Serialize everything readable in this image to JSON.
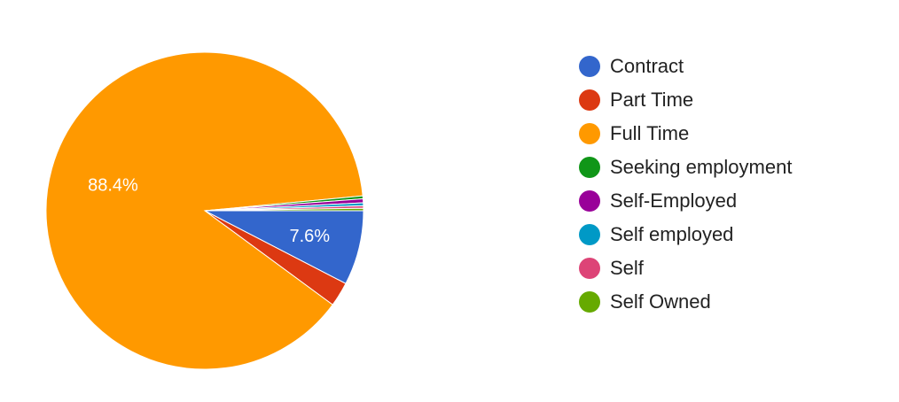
{
  "chart_data": {
    "type": "pie",
    "title": "",
    "legend_position": "right",
    "slices": [
      {
        "label": "Contract",
        "value": 7.6,
        "color": "#3366cc",
        "display_label": "7.6%"
      },
      {
        "label": "Part Time",
        "value": 2.5,
        "color": "#dc3912",
        "display_label": ""
      },
      {
        "label": "Full Time",
        "value": 88.4,
        "color": "#ff9900",
        "display_label": "88.4%"
      },
      {
        "label": "Seeking employment",
        "value": 0.3,
        "color": "#109618",
        "display_label": ""
      },
      {
        "label": "Self-Employed",
        "value": 0.4,
        "color": "#990099",
        "display_label": ""
      },
      {
        "label": "Self employed",
        "value": 0.3,
        "color": "#0099c6",
        "display_label": ""
      },
      {
        "label": "Self",
        "value": 0.25,
        "color": "#dd4477",
        "display_label": ""
      },
      {
        "label": "Self Owned",
        "value": 0.25,
        "color": "#66aa00",
        "display_label": ""
      }
    ]
  }
}
